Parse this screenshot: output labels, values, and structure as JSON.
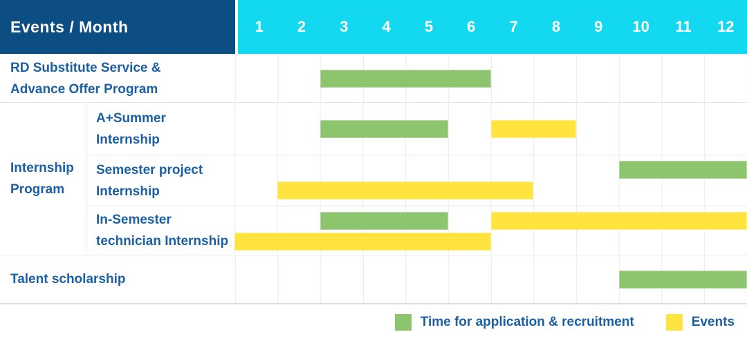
{
  "colors": {
    "header_bg": "#0c4d84",
    "months_bg": "#12d9f0",
    "text_blue": "#1b5fa4",
    "green": "#8cc56d",
    "yellow": "#ffe33e",
    "grid": "#ececec"
  },
  "header": {
    "label": "Events / Month",
    "months": [
      "1",
      "2",
      "3",
      "4",
      "5",
      "6",
      "7",
      "8",
      "9",
      "10",
      "11",
      "12"
    ]
  },
  "group": {
    "label": "Internship Program",
    "label_lines": [
      "Internship",
      "Program"
    ]
  },
  "legend": {
    "items": [
      {
        "label": "Time for application & recruitment",
        "color": "green"
      },
      {
        "label": "Events",
        "color": "yellow"
      }
    ]
  },
  "chart_data": {
    "type": "gantt",
    "title": "Events / Month",
    "x_axis": {
      "label": "Month",
      "ticks": [
        "1",
        "2",
        "3",
        "4",
        "5",
        "6",
        "7",
        "8",
        "9",
        "10",
        "11",
        "12"
      ],
      "range": [
        1,
        12
      ]
    },
    "series": [
      {
        "name": "Time for application & recruitment",
        "color": "green"
      },
      {
        "name": "Events",
        "color": "yellow"
      }
    ],
    "rows": [
      {
        "group": null,
        "label": "RD Substitute Service & Advance Offer Program",
        "label_lines": [
          "RD Substitute Service &",
          "Advance Offer Program"
        ],
        "bars": [
          {
            "series": "Time for application & recruitment",
            "color": "green",
            "start_month": 3,
            "end_month": 6,
            "line": 1
          }
        ]
      },
      {
        "group": "Internship Program",
        "label": "A+Summer Internship",
        "label_lines": [
          "A+Summer",
          "Internship"
        ],
        "bars": [
          {
            "series": "Time for application & recruitment",
            "color": "green",
            "start_month": 3,
            "end_month": 5,
            "line": 1
          },
          {
            "series": "Events",
            "color": "yellow",
            "start_month": 7,
            "end_month": 8,
            "line": 1
          }
        ]
      },
      {
        "group": "Internship Program",
        "label": "Semester project Internship",
        "label_lines": [
          "Semester project",
          "Internship"
        ],
        "bars": [
          {
            "series": "Time for application & recruitment",
            "color": "green",
            "start_month": 10,
            "end_month": 12,
            "line": 1
          },
          {
            "series": "Events",
            "color": "yellow",
            "start_month": 2,
            "end_month": 7,
            "line": 2
          }
        ]
      },
      {
        "group": "Internship Program",
        "label": "In-Semester technician Internship",
        "label_lines": [
          "In-Semester",
          "technician Internship"
        ],
        "bars": [
          {
            "series": "Time for application & recruitment",
            "color": "green",
            "start_month": 3,
            "end_month": 5,
            "line": 1
          },
          {
            "series": "Events",
            "color": "yellow",
            "start_month": 7,
            "end_month": 12,
            "line": 1
          },
          {
            "series": "Events",
            "color": "yellow",
            "start_month": 1,
            "end_month": 6,
            "line": 2
          }
        ]
      },
      {
        "group": null,
        "label": "Talent scholarship",
        "label_lines": [
          "Talent scholarship"
        ],
        "bars": [
          {
            "series": "Time for application & recruitment",
            "color": "green",
            "start_month": 10,
            "end_month": 12,
            "line": 1
          }
        ]
      }
    ]
  }
}
